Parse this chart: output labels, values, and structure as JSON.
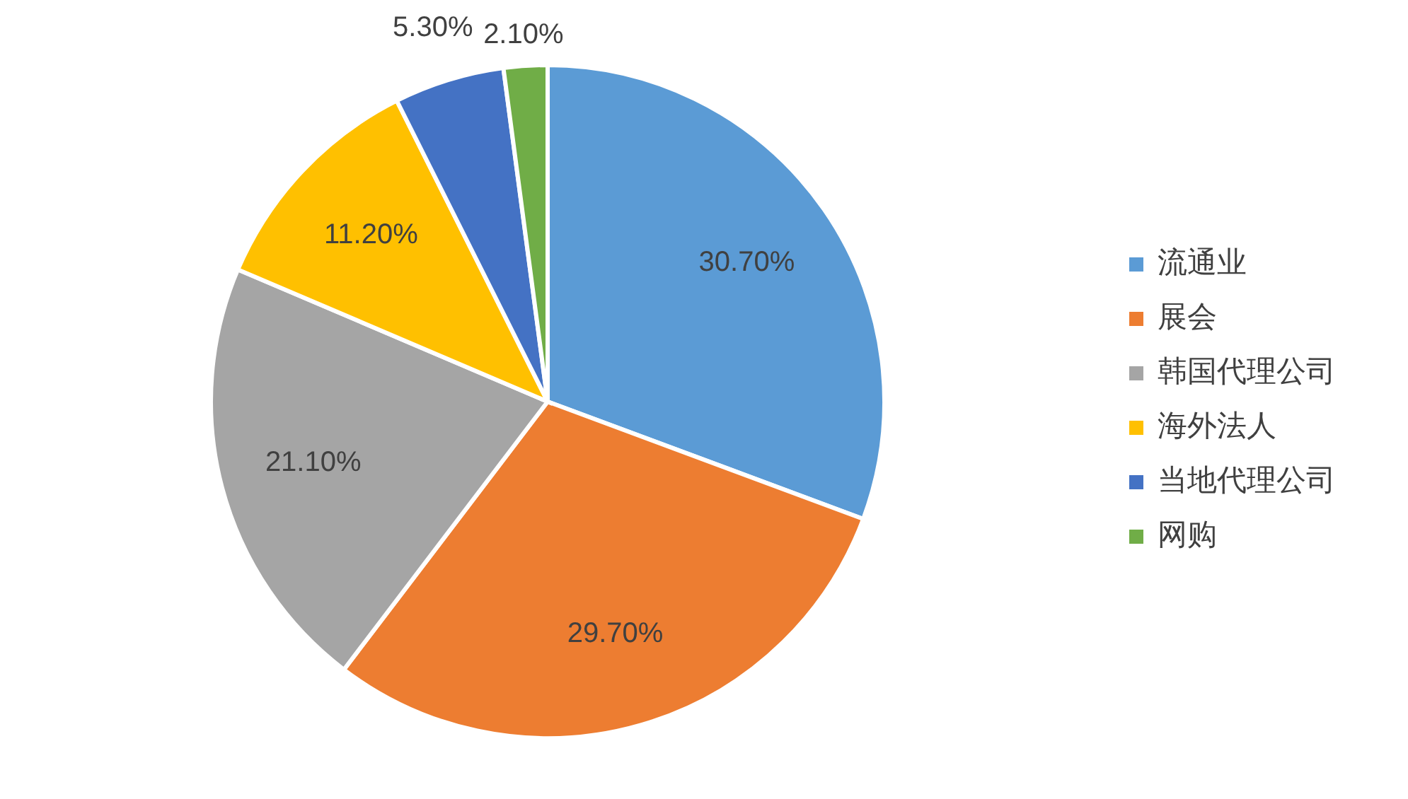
{
  "chart_data": {
    "type": "pie",
    "categories": [
      "流通业",
      "展会",
      "韩国代理公司",
      "海外法人",
      "当地代理公司",
      "网购"
    ],
    "values": [
      30.7,
      29.7,
      21.1,
      11.2,
      5.3,
      2.1
    ],
    "colors": [
      "#5b9bd5",
      "#ed7d31",
      "#a5a5a5",
      "#ffc000",
      "#4472c4",
      "#70ad47"
    ],
    "value_labels": [
      "30.70%",
      "29.70%",
      "21.10%",
      "11.20%",
      "5.30%",
      "2.10%"
    ],
    "legend": "right"
  }
}
